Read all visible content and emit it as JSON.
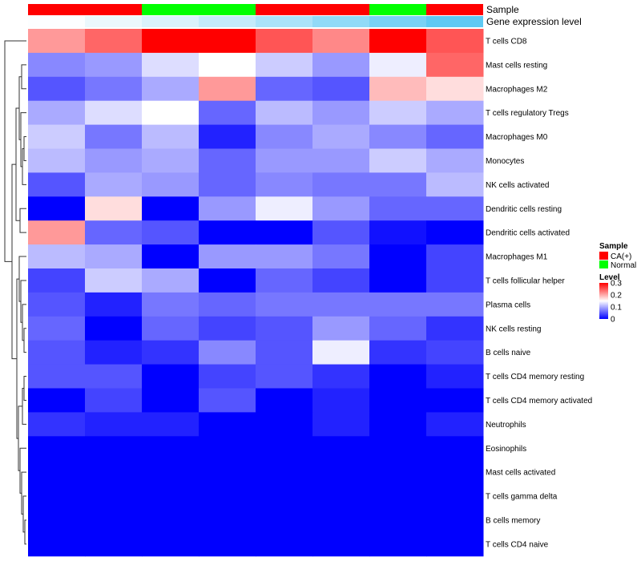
{
  "chart_data": {
    "type": "heatmap",
    "annotation_tracks": [
      {
        "name": "Sample",
        "label": "Sample"
      },
      {
        "name": "Gene expression level",
        "label": "Gene expression level"
      }
    ],
    "columns": [
      {
        "sample": "CA(+)",
        "expression": 0.02
      },
      {
        "sample": "CA(+)",
        "expression": 0.12
      },
      {
        "sample": "Normal",
        "expression": 0.22
      },
      {
        "sample": "Normal",
        "expression": 0.35
      },
      {
        "sample": "CA(+)",
        "expression": 0.5
      },
      {
        "sample": "CA(+)",
        "expression": 0.65
      },
      {
        "sample": "Normal",
        "expression": 0.8
      },
      {
        "sample": "CA(+)",
        "expression": 0.95
      }
    ],
    "rows": [
      "T cells CD8",
      "Mast cells resting",
      "Macrophages M2",
      "T cells regulatory  Tregs",
      "Macrophages M0",
      "Monocytes",
      "NK cells activated",
      "Dendritic cells resting",
      "Dendritic cells activated",
      "Macrophages M1",
      "T cells follicular helper",
      "Plasma cells",
      "NK cells resting",
      "B cells naive",
      "T cells CD4 memory resting",
      "T cells CD4 memory activated",
      "Neutrophils",
      "Eosinophils",
      "Mast cells activated",
      "T cells gamma delta",
      "B cells memory",
      "T cells CD4 naive"
    ],
    "values": [
      [
        0.21,
        0.24,
        0.3,
        0.3,
        0.25,
        0.22,
        0.3,
        0.25
      ],
      [
        0.08,
        0.09,
        0.13,
        0.15,
        0.12,
        0.09,
        0.14,
        0.24
      ],
      [
        0.05,
        0.07,
        0.1,
        0.21,
        0.06,
        0.05,
        0.19,
        0.17
      ],
      [
        0.1,
        0.13,
        0.15,
        0.06,
        0.11,
        0.09,
        0.12,
        0.1
      ],
      [
        0.12,
        0.07,
        0.11,
        0.02,
        0.08,
        0.1,
        0.08,
        0.06
      ],
      [
        0.11,
        0.09,
        0.1,
        0.06,
        0.09,
        0.09,
        0.12,
        0.1
      ],
      [
        0.05,
        0.1,
        0.09,
        0.06,
        0.08,
        0.07,
        0.07,
        0.11
      ],
      [
        0.0,
        0.17,
        0.0,
        0.09,
        0.14,
        0.09,
        0.06,
        0.06
      ],
      [
        0.21,
        0.06,
        0.05,
        0.0,
        0.0,
        0.05,
        0.01,
        0.0
      ],
      [
        0.11,
        0.1,
        0.0,
        0.09,
        0.09,
        0.07,
        0.0,
        0.04
      ],
      [
        0.04,
        0.12,
        0.1,
        0.0,
        0.06,
        0.04,
        0.0,
        0.04
      ],
      [
        0.05,
        0.02,
        0.07,
        0.06,
        0.07,
        0.07,
        0.07,
        0.07
      ],
      [
        0.06,
        0.0,
        0.06,
        0.04,
        0.05,
        0.09,
        0.06,
        0.03
      ],
      [
        0.05,
        0.02,
        0.03,
        0.08,
        0.05,
        0.14,
        0.03,
        0.04
      ],
      [
        0.05,
        0.05,
        0.0,
        0.04,
        0.05,
        0.03,
        0.0,
        0.02
      ],
      [
        0.0,
        0.04,
        0.0,
        0.05,
        0.0,
        0.02,
        0.0,
        0.0
      ],
      [
        0.03,
        0.02,
        0.02,
        0.0,
        0.0,
        0.02,
        0.0,
        0.02
      ],
      [
        0.0,
        0.0,
        0.0,
        0.0,
        0.0,
        0.0,
        0.0,
        0.0
      ],
      [
        0.0,
        0.0,
        0.0,
        0.0,
        0.0,
        0.0,
        0.0,
        0.0
      ],
      [
        0.0,
        0.0,
        0.0,
        0.0,
        0.0,
        0.0,
        0.0,
        0.0
      ],
      [
        0.0,
        0.0,
        0.0,
        0.0,
        0.0,
        0.0,
        0.0,
        0.0
      ],
      [
        0.0,
        0.0,
        0.0,
        0.0,
        0.0,
        0.0,
        0.0,
        0.0
      ]
    ],
    "color_scale": {
      "min": 0,
      "mid": 0.15,
      "max": 0.3,
      "low": "#0000ff",
      "middle": "#ffffff",
      "high": "#ff0000"
    },
    "sample_colors": {
      "CA(+)": "#ff0000",
      "Normal": "#00ff00"
    },
    "expression_colors": {
      "low": "#ffffff",
      "high": "#56c6f2"
    },
    "legend": {
      "position": "right",
      "sample_title": "Sample",
      "sample_entries": [
        "CA(+)",
        "Normal"
      ],
      "level_title": "Level",
      "level_ticks": [
        {
          "value": 0.3,
          "label": "0.3"
        },
        {
          "value": 0.2,
          "label": "0.2"
        },
        {
          "value": 0.1,
          "label": "0.1"
        },
        {
          "value": 0,
          "label": "0"
        }
      ]
    },
    "row_dendrogram": true,
    "column_dendrogram": false
  }
}
